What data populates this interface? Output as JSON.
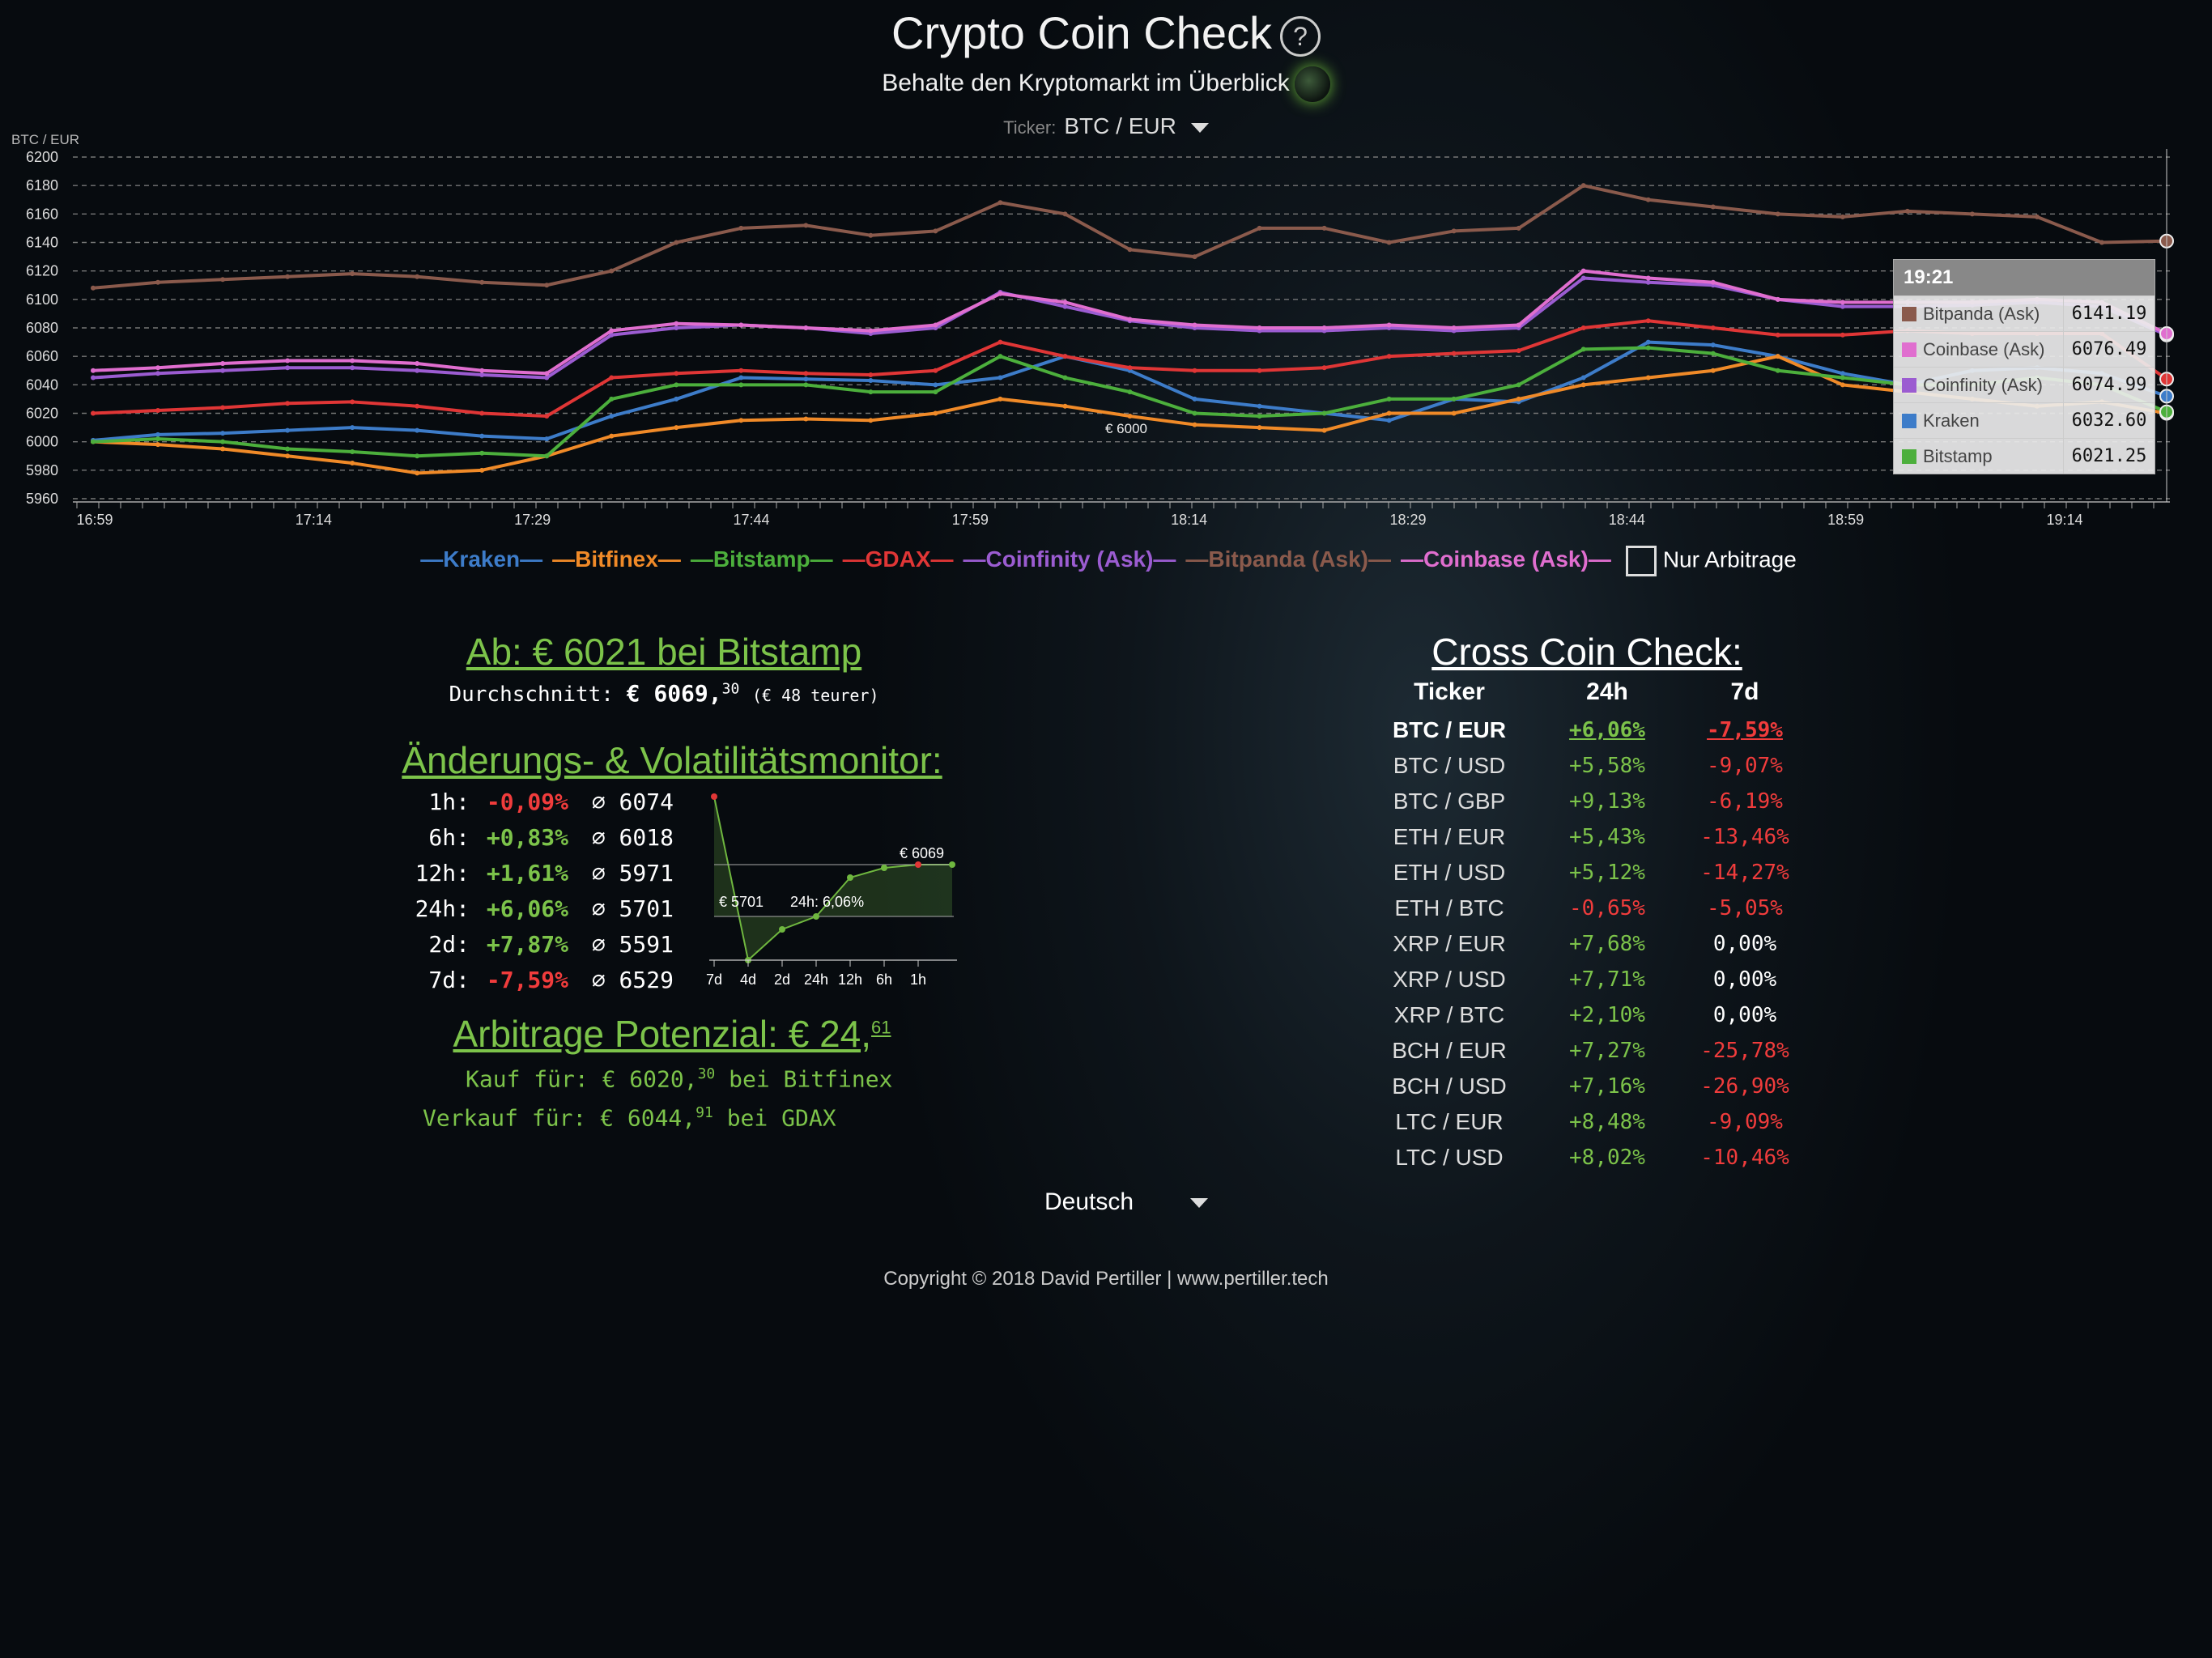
{
  "header": {
    "title": "Crypto Coin Check",
    "help_icon": "?",
    "subtitle": "Behalte den Kryptomarkt im Überblick",
    "ticker_label": "Ticker:",
    "ticker_value": "BTC / EUR"
  },
  "chart_data": {
    "type": "line",
    "ylabel": "BTC / EUR",
    "ylim": [
      5960,
      6200
    ],
    "yticks": [
      "6200",
      "6180",
      "6160",
      "6140",
      "6120",
      "6100",
      "6080",
      "6060",
      "6040",
      "6020",
      "6000",
      "5980",
      "5960"
    ],
    "xticks": [
      "16:59",
      "17:14",
      "17:29",
      "17:44",
      "17:59",
      "18:14",
      "18:29",
      "18:44",
      "18:59",
      "19:14"
    ],
    "annotation": "€ 6000",
    "series": [
      {
        "name": "Kraken",
        "color": "#3d7cc9",
        "values": [
          6001,
          6005,
          6006,
          6008,
          6010,
          6008,
          6004,
          6002,
          6018,
          6030,
          6045,
          6044,
          6043,
          6040,
          6045,
          6060,
          6050,
          6030,
          6025,
          6020,
          6015,
          6030,
          6028,
          6045,
          6070,
          6068,
          6060,
          6048,
          6040,
          6050,
          6052,
          6048,
          6032
        ]
      },
      {
        "name": "Bitfinex",
        "color": "#f08a28",
        "values": [
          6000,
          5998,
          5995,
          5990,
          5985,
          5978,
          5980,
          5990,
          6004,
          6010,
          6015,
          6016,
          6015,
          6020,
          6030,
          6025,
          6018,
          6012,
          6010,
          6008,
          6020,
          6020,
          6030,
          6040,
          6045,
          6050,
          6060,
          6040,
          6035,
          6030,
          6025,
          6028,
          6020
        ]
      },
      {
        "name": "Bitstamp",
        "color": "#4caf3c",
        "values": [
          6000,
          6002,
          6000,
          5995,
          5993,
          5990,
          5992,
          5990,
          6030,
          6040,
          6040,
          6040,
          6035,
          6035,
          6060,
          6045,
          6035,
          6020,
          6018,
          6020,
          6030,
          6030,
          6040,
          6065,
          6066,
          6062,
          6050,
          6045,
          6040,
          6040,
          6045,
          6040,
          6021
        ]
      },
      {
        "name": "GDAX",
        "color": "#e03636",
        "values": [
          6020,
          6022,
          6024,
          6027,
          6028,
          6025,
          6020,
          6018,
          6045,
          6048,
          6050,
          6048,
          6047,
          6050,
          6070,
          6060,
          6052,
          6050,
          6050,
          6052,
          6060,
          6062,
          6064,
          6080,
          6085,
          6080,
          6075,
          6075,
          6078,
          6076,
          6076,
          6076,
          6044
        ]
      },
      {
        "name": "Coinfinity (Ask)",
        "color": "#9b5cd1",
        "values": [
          6045,
          6048,
          6050,
          6052,
          6052,
          6050,
          6047,
          6045,
          6075,
          6080,
          6082,
          6080,
          6076,
          6080,
          6105,
          6095,
          6085,
          6080,
          6078,
          6078,
          6080,
          6078,
          6080,
          6115,
          6112,
          6110,
          6100,
          6095,
          6095,
          6096,
          6098,
          6095,
          6075
        ]
      },
      {
        "name": "Bitpanda (Ask)",
        "color": "#8a5a4c",
        "values": [
          6108,
          6112,
          6114,
          6116,
          6118,
          6116,
          6112,
          6110,
          6120,
          6140,
          6150,
          6152,
          6145,
          6148,
          6168,
          6160,
          6135,
          6130,
          6150,
          6150,
          6140,
          6148,
          6150,
          6180,
          6170,
          6165,
          6160,
          6158,
          6162,
          6160,
          6158,
          6140,
          6141
        ]
      },
      {
        "name": "Coinbase (Ask)",
        "color": "#e06ecf",
        "values": [
          6050,
          6052,
          6055,
          6057,
          6057,
          6055,
          6050,
          6048,
          6078,
          6083,
          6082,
          6080,
          6078,
          6082,
          6104,
          6098,
          6086,
          6082,
          6080,
          6080,
          6082,
          6080,
          6082,
          6120,
          6115,
          6112,
          6100,
          6098,
          6098,
          6098,
          6100,
          6098,
          6076
        ]
      }
    ]
  },
  "legend": {
    "items": [
      "Kraken",
      "Bitfinex",
      "Bitstamp",
      "GDAX",
      "Coinfinity (Ask)",
      "Bitpanda (Ask)",
      "Coinbase (Ask)"
    ],
    "arbitrage_label": "Nur Arbitrage"
  },
  "tooltip": {
    "time": "19:21",
    "rows": [
      {
        "name": "Bitpanda (Ask)",
        "value": "6141.19",
        "color": "#8a5a4c"
      },
      {
        "name": "Coinbase (Ask)",
        "value": "6076.49",
        "color": "#e06ecf"
      },
      {
        "name": "Coinfinity (Ask)",
        "value": "6074.99",
        "color": "#9b5cd1"
      },
      {
        "name": "Kraken",
        "value": "6032.60",
        "color": "#3d7cc9"
      },
      {
        "name": "Bitstamp",
        "value": "6021.25",
        "color": "#4caf3c"
      }
    ]
  },
  "best": {
    "text": "Ab: € 6021  bei Bitstamp",
    "avg_label": "Durchschnitt:",
    "avg_value": "€ 6069,",
    "avg_cents": "30",
    "avg_note": "(€ 48 teurer)"
  },
  "volatility": {
    "title": "Änderungs- & Volatilitätsmonitor:",
    "rows": [
      {
        "period": "1h:",
        "change": "-0,09%",
        "dir": "red",
        "avg": "⌀ 6074"
      },
      {
        "period": "6h:",
        "change": "+0,83%",
        "dir": "green",
        "avg": "⌀ 6018"
      },
      {
        "period": "12h:",
        "change": "+1,61%",
        "dir": "green",
        "avg": "⌀ 5971"
      },
      {
        "period": "24h:",
        "change": "+6,06%",
        "dir": "green",
        "avg": "⌀ 5701"
      },
      {
        "period": "2d:",
        "change": "+7,87%",
        "dir": "green",
        "avg": "⌀ 5591"
      },
      {
        "period": "7d:",
        "change": "-7,59%",
        "dir": "red",
        "avg": "⌀ 6529"
      }
    ],
    "mini_chart": {
      "labels": [
        "7d",
        "4d",
        "2d",
        "24h",
        "12h",
        "6h",
        "1h"
      ],
      "high_label": "€ 6069",
      "low_label": "€ 5701",
      "change_label": "24h: 6,06%"
    }
  },
  "arbitrage": {
    "title": "Arbitrage Potenzial: € 24,",
    "title_cents": "61",
    "buy_text": "Kauf für: € 6020,",
    "buy_cents": "30",
    "buy_where": " bei Bitfinex",
    "sell_text": "Verkauf für: € 6044,",
    "sell_cents": "91",
    "sell_where": " bei GDAX"
  },
  "cross": {
    "title": "Cross Coin Check:",
    "headers": [
      "Ticker",
      "24h",
      "7d"
    ],
    "rows": [
      {
        "ticker": "BTC / EUR",
        "d24": "+6,06%",
        "d24c": "green",
        "d7": "-7,59%",
        "d7c": "red",
        "active": true
      },
      {
        "ticker": "BTC / USD",
        "d24": "+5,58%",
        "d24c": "green",
        "d7": "-9,07%",
        "d7c": "red"
      },
      {
        "ticker": "BTC / GBP",
        "d24": "+9,13%",
        "d24c": "green",
        "d7": "-6,19%",
        "d7c": "red"
      },
      {
        "ticker": "ETH / EUR",
        "d24": "+5,43%",
        "d24c": "green",
        "d7": "-13,46%",
        "d7c": "red"
      },
      {
        "ticker": "ETH / USD",
        "d24": "+5,12%",
        "d24c": "green",
        "d7": "-14,27%",
        "d7c": "red"
      },
      {
        "ticker": "ETH / BTC",
        "d24": "-0,65%",
        "d24c": "red",
        "d7": "-5,05%",
        "d7c": "red"
      },
      {
        "ticker": "XRP / EUR",
        "d24": "+7,68%",
        "d24c": "green",
        "d7": "0,00%",
        "d7c": "zero"
      },
      {
        "ticker": "XRP / USD",
        "d24": "+7,71%",
        "d24c": "green",
        "d7": "0,00%",
        "d7c": "zero"
      },
      {
        "ticker": "XRP / BTC",
        "d24": "+2,10%",
        "d24c": "green",
        "d7": "0,00%",
        "d7c": "zero"
      },
      {
        "ticker": "BCH / EUR",
        "d24": "+7,27%",
        "d24c": "green",
        "d7": "-25,78%",
        "d7c": "red"
      },
      {
        "ticker": "BCH / USD",
        "d24": "+7,16%",
        "d24c": "green",
        "d7": "-26,90%",
        "d7c": "red"
      },
      {
        "ticker": "LTC / EUR",
        "d24": "+8,48%",
        "d24c": "green",
        "d7": "-9,09%",
        "d7c": "red"
      },
      {
        "ticker": "LTC / USD",
        "d24": "+8,02%",
        "d24c": "green",
        "d7": "-10,46%",
        "d7c": "red"
      }
    ]
  },
  "footer": {
    "language": "Deutsch",
    "copyright": "Copyright © 2018 David Pertiller | www.pertiller.tech"
  }
}
